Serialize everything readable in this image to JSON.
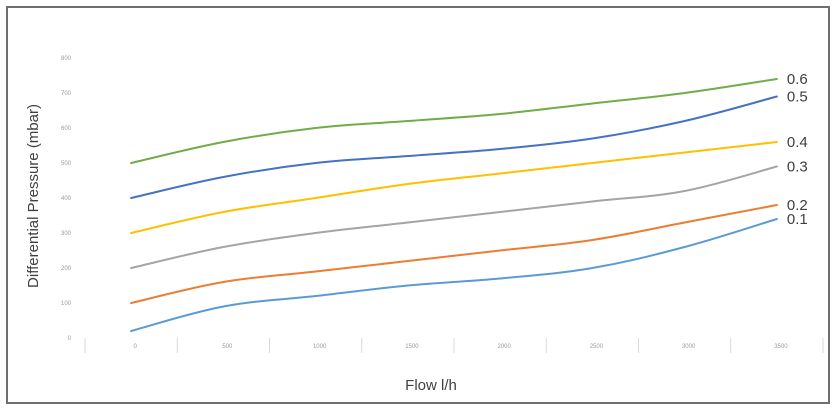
{
  "chart_data": {
    "type": "line",
    "title": "",
    "xlabel": "Flow  l/h",
    "ylabel": "Differential Pressure (mbar)",
    "x_categories": [
      "0",
      "500",
      "1000",
      "1500",
      "2000",
      "2500",
      "3000",
      "3500"
    ],
    "y_ticks": [
      "0",
      "100",
      "200",
      "300",
      "400",
      "500",
      "600",
      "700",
      "800"
    ],
    "ylim": [
      0,
      800
    ],
    "grid": "vertical category separators only",
    "legend": "none (series labeled at line ends, right side)",
    "series": [
      {
        "name": "0.1",
        "color": "#5b9bd5",
        "values": [
          20,
          90,
          120,
          150,
          170,
          200,
          260,
          340
        ]
      },
      {
        "name": "0.2",
        "color": "#ed7d31",
        "values": [
          100,
          160,
          190,
          220,
          250,
          280,
          330,
          380
        ]
      },
      {
        "name": "0.3",
        "color": "#a5a5a5",
        "values": [
          200,
          260,
          300,
          330,
          360,
          390,
          420,
          490
        ]
      },
      {
        "name": "0.4",
        "color": "#ffc000",
        "values": [
          300,
          360,
          400,
          440,
          470,
          500,
          530,
          560
        ]
      },
      {
        "name": "0.5",
        "color": "#4472c4",
        "values": [
          400,
          460,
          500,
          520,
          540,
          570,
          620,
          690
        ]
      },
      {
        "name": "0.6",
        "color": "#70ad47",
        "values": [
          500,
          560,
          600,
          620,
          640,
          670,
          700,
          740
        ]
      }
    ]
  }
}
